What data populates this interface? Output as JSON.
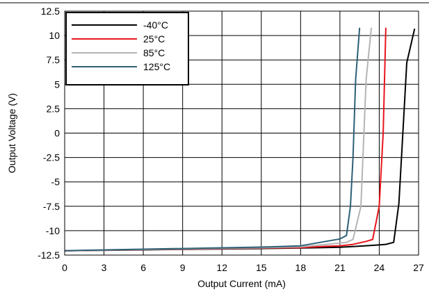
{
  "chart_data": {
    "type": "line",
    "title": "",
    "xlabel": "Output Current (mA)",
    "ylabel": "Output Voltage (V)",
    "xlim": [
      0,
      27
    ],
    "ylim": [
      -12.5,
      12.5
    ],
    "x_ticks": [
      "0",
      "3",
      "6",
      "9",
      "12",
      "15",
      "18",
      "21",
      "24",
      "27"
    ],
    "y_ticks": [
      "12.5",
      "10",
      "7.5",
      "5",
      "2.5",
      "0",
      "-2.5",
      "-5",
      "-7.5",
      "-10",
      "-12.5"
    ],
    "grid": true,
    "legend_position": "top-left",
    "series": [
      {
        "name": "-40°C",
        "color": "#000000",
        "points": [
          [
            0,
            -12.05
          ],
          [
            5,
            -11.98
          ],
          [
            10,
            -11.9
          ],
          [
            15,
            -11.83
          ],
          [
            19,
            -11.75
          ],
          [
            21,
            -11.7
          ],
          [
            22.3,
            -11.6
          ],
          [
            23.5,
            -11.5
          ],
          [
            24.5,
            -11.4
          ],
          [
            25.1,
            -11.2
          ],
          [
            25.5,
            -7.2
          ],
          [
            25.8,
            0
          ],
          [
            26.1,
            7.2
          ],
          [
            26.7,
            10.7
          ]
        ]
      },
      {
        "name": "25°C",
        "color": "#e8141c",
        "points": [
          [
            0,
            -12.05
          ],
          [
            5,
            -11.96
          ],
          [
            10,
            -11.87
          ],
          [
            15,
            -11.78
          ],
          [
            18,
            -11.73
          ],
          [
            20,
            -11.6
          ],
          [
            21,
            -11.55
          ],
          [
            22,
            -11.4
          ],
          [
            23,
            -11.1
          ],
          [
            23.5,
            -10.9
          ],
          [
            24.0,
            -7.5
          ],
          [
            24.3,
            0
          ],
          [
            24.5,
            10.8
          ]
        ]
      },
      {
        "name": "85°C",
        "color": "#b4b4b4",
        "points": [
          [
            0,
            -12.05
          ],
          [
            5,
            -11.95
          ],
          [
            10,
            -11.85
          ],
          [
            15,
            -11.75
          ],
          [
            18,
            -11.65
          ],
          [
            20,
            -11.4
          ],
          [
            21.5,
            -11.2
          ],
          [
            22.0,
            -10.9
          ],
          [
            22.6,
            -7.5
          ],
          [
            22.8,
            -1.0
          ],
          [
            23.0,
            5.5
          ],
          [
            23.4,
            10.8
          ]
        ]
      },
      {
        "name": "125°C",
        "color": "#2c5f75",
        "points": [
          [
            0,
            -12.05
          ],
          [
            5,
            -11.92
          ],
          [
            10,
            -11.8
          ],
          [
            15,
            -11.68
          ],
          [
            18,
            -11.55
          ],
          [
            19.5,
            -11.2
          ],
          [
            21,
            -10.85
          ],
          [
            21.5,
            -10.5
          ],
          [
            21.8,
            -7.5
          ],
          [
            22.0,
            -2.5
          ],
          [
            22.2,
            5.5
          ],
          [
            22.5,
            10.8
          ]
        ]
      }
    ]
  }
}
